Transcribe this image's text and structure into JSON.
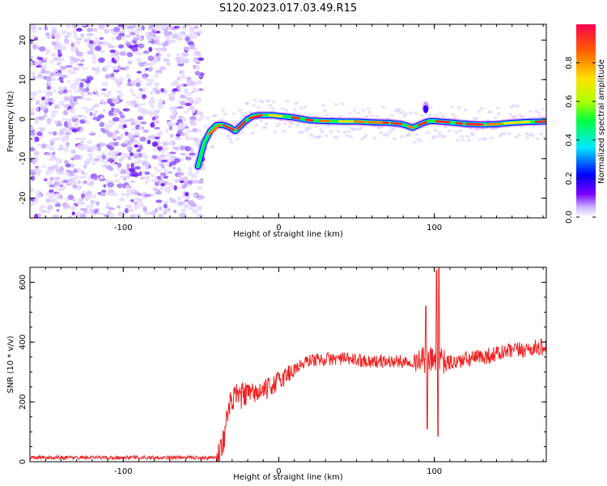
{
  "figure": {
    "title": "S120.2023.017.03.49.R15"
  },
  "chart_data": [
    {
      "type": "heatmap",
      "xlabel": "Height of straight line (km)",
      "ylabel": "Frequency (Hz)",
      "xlim": [
        -160,
        172
      ],
      "ylim": [
        -25,
        24
      ],
      "xticks": [
        -100,
        0,
        100
      ],
      "yticks": [
        -20,
        -10,
        0,
        10,
        20
      ],
      "colorbar": {
        "label": "Normalized spectral amplitude",
        "range": [
          0,
          1
        ],
        "ticks": [
          "0.0",
          "0.2",
          "0.4",
          "0.6",
          "0.8"
        ],
        "colors": [
          "#ffffff",
          "#cdb6ff",
          "#7a00ff",
          "#0000ff",
          "#00e8ff",
          "#00ff40",
          "#b0ff00",
          "#ffe000",
          "#ff6000",
          "#ff0050"
        ]
      },
      "noise_region_x": [
        -160,
        -52
      ],
      "ridge": {
        "x": [
          -52,
          -48,
          -44,
          -40,
          -36,
          -32,
          -28,
          -24,
          -20,
          -16,
          -12,
          -8,
          -4,
          0,
          10,
          20,
          30,
          40,
          50,
          60,
          70,
          78,
          82,
          86,
          90,
          94,
          97,
          100,
          110,
          120,
          130,
          140,
          150,
          160,
          170
        ],
        "frequency": [
          -12,
          -6,
          -3,
          -1.5,
          -1.5,
          -2,
          -3,
          -1.5,
          0,
          0.8,
          1,
          1,
          1,
          0.8,
          0.4,
          -0.3,
          -0.5,
          -0.6,
          -0.6,
          -0.8,
          -0.9,
          -1.2,
          -1.6,
          -2.2,
          -1.5,
          -0.8,
          -0.5,
          -0.5,
          -0.8,
          -1.2,
          -1.4,
          -1.3,
          -0.9,
          -0.7,
          -0.6
        ]
      }
    },
    {
      "type": "line",
      "xlabel": "Height of straight line (km)",
      "ylabel": "SNR (10 * v/v)",
      "xlim": [
        -160,
        172
      ],
      "ylim": [
        0,
        650
      ],
      "xticks": [
        -100,
        0,
        100
      ],
      "yticks": [
        0,
        200,
        400,
        600
      ],
      "color": "#ee2222",
      "envelope": {
        "x": [
          -160,
          -40,
          -36,
          -33,
          -30,
          -25,
          -20,
          -15,
          -10,
          0,
          10,
          20,
          40,
          60,
          80,
          90,
          100,
          110,
          130,
          150,
          172
        ],
        "y": [
          14,
          14,
          60,
          150,
          210,
          220,
          225,
          230,
          235,
          270,
          310,
          340,
          345,
          335,
          335,
          340,
          340,
          330,
          350,
          370,
          385
        ]
      },
      "spikes": [
        {
          "x": 94.5,
          "y": 520
        },
        {
          "x": 95.5,
          "y": 110
        },
        {
          "x": 101.5,
          "y": 640
        },
        {
          "x": 102.5,
          "y": 85
        },
        {
          "x": 103,
          "y": 650
        }
      ]
    }
  ]
}
